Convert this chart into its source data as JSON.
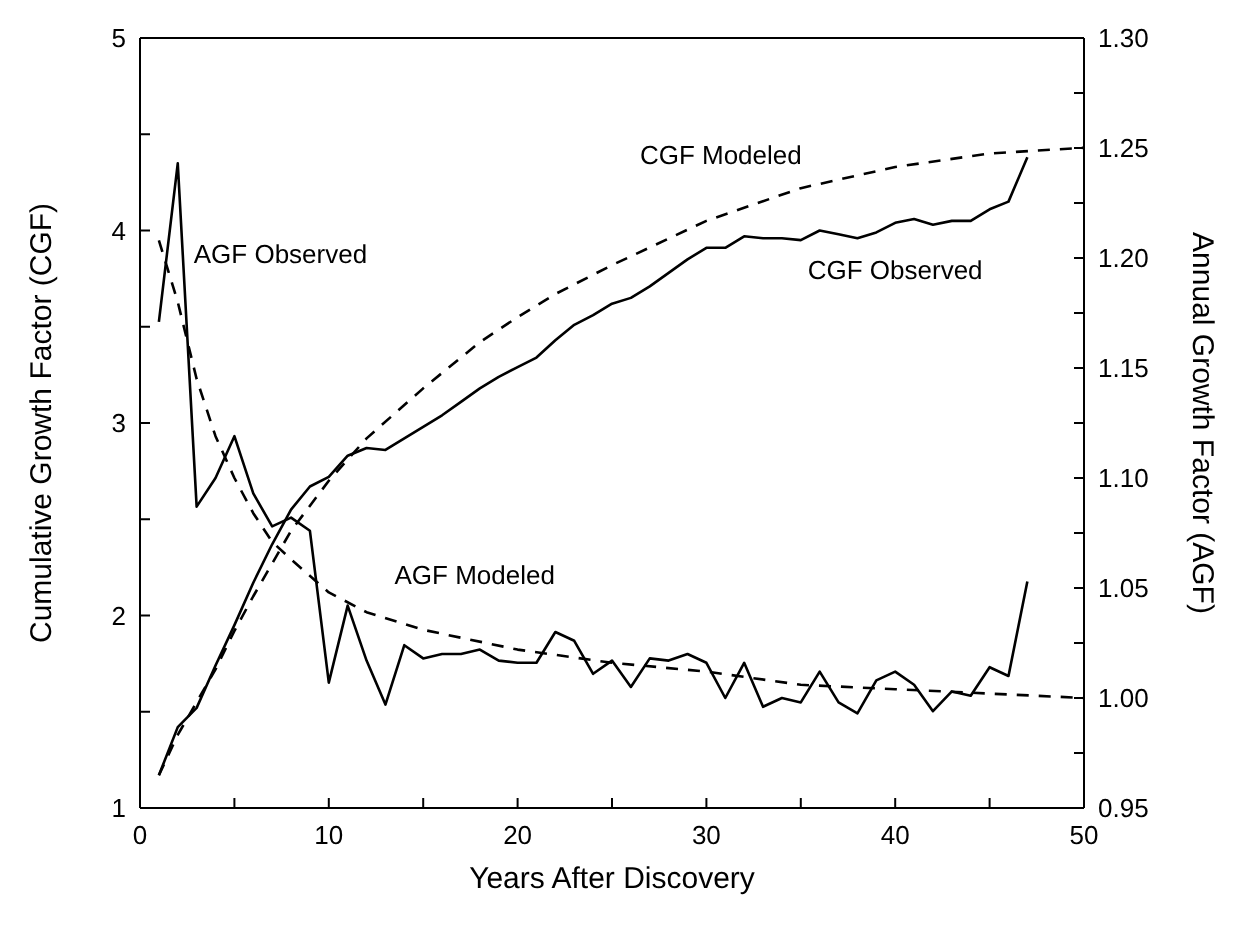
{
  "chart_data": {
    "type": "line",
    "xlabel": "Years After Discovery",
    "ylabel": "Cumulative Growth Factor (CGF)",
    "y2label": "Annual Growth Factor (AGF)",
    "xlim": [
      0,
      50
    ],
    "xticks": [
      0,
      {
        "value": 5,
        "label": null
      },
      10,
      {
        "value": 15,
        "label": null
      },
      20,
      {
        "value": 25,
        "label": null
      },
      30,
      {
        "value": 35,
        "label": null
      },
      40,
      {
        "value": 45,
        "label": null
      },
      50
    ],
    "ylim": [
      1,
      5
    ],
    "yticks": [
      1,
      {
        "value": 1.5,
        "label": null
      },
      2,
      {
        "value": 2.5,
        "label": null
      },
      3,
      {
        "value": 3.5,
        "label": null
      },
      4,
      {
        "value": 4.5,
        "label": null
      },
      5
    ],
    "y2lim": [
      0.95,
      1.3
    ],
    "y2ticks": [
      {
        "value": 0.95,
        "label": "0.95"
      },
      {
        "value": 0.975,
        "label": null
      },
      {
        "value": 1,
        "label": "1.00"
      },
      {
        "value": 1.025,
        "label": null
      },
      {
        "value": 1.05,
        "label": "1.05"
      },
      {
        "value": 1.075,
        "label": null
      },
      {
        "value": 1.1,
        "label": "1.10"
      },
      {
        "value": 1.125,
        "label": null
      },
      {
        "value": 1.15,
        "label": "1.15"
      },
      {
        "value": 1.175,
        "label": null
      },
      {
        "value": 1.2,
        "label": "1.20"
      },
      {
        "value": 1.225,
        "label": null
      },
      {
        "value": 1.25,
        "label": "1.25"
      },
      {
        "value": 1.275,
        "label": null
      },
      {
        "value": 1.3,
        "label": "1.30"
      }
    ],
    "grid": false,
    "legend": false,
    "marker": "none",
    "series": [
      {
        "name": "CGF Observed",
        "color": "#000000",
        "line_style": "solid",
        "x": [
          1,
          2,
          3,
          4,
          5,
          6,
          7,
          8,
          9,
          10,
          11,
          12,
          13,
          14,
          15,
          16,
          17,
          18,
          19,
          20,
          21,
          22,
          23,
          24,
          25,
          26,
          27,
          28,
          29,
          30,
          31,
          32,
          33,
          34,
          35,
          36,
          37,
          38,
          39,
          40,
          41,
          42,
          43,
          44,
          45,
          46,
          47
        ],
        "values": [
          1.17,
          1.42,
          1.52,
          1.74,
          1.95,
          2.17,
          2.37,
          2.55,
          2.67,
          2.72,
          2.83,
          2.87,
          2.86,
          2.92,
          2.98,
          3.04,
          3.11,
          3.18,
          3.24,
          3.29,
          3.34,
          3.43,
          3.51,
          3.56,
          3.62,
          3.65,
          3.71,
          3.78,
          3.85,
          3.91,
          3.91,
          3.97,
          3.96,
          3.96,
          3.95,
          4.0,
          3.98,
          3.96,
          3.99,
          4.04,
          4.06,
          4.03,
          4.05,
          4.05,
          4.11,
          4.15,
          4.38
        ]
      },
      {
        "name": "CGF Modeled",
        "color": "#000000",
        "line_style": "dashed",
        "x": [
          1,
          2,
          3,
          4,
          5,
          6,
          8,
          10,
          12,
          15,
          18,
          20,
          22,
          25,
          30,
          35,
          40,
          45,
          50
        ],
        "values": [
          1.17,
          1.38,
          1.55,
          1.72,
          1.92,
          2.1,
          2.44,
          2.7,
          2.92,
          3.18,
          3.42,
          3.55,
          3.67,
          3.82,
          4.05,
          4.22,
          4.33,
          4.4,
          4.43
        ]
      },
      {
        "name": "AGF Observed",
        "color": "#000000",
        "line_style": "solid",
        "axis": "y2",
        "x": [
          1,
          2,
          3,
          4,
          5,
          6,
          7,
          8,
          9,
          10,
          11,
          12,
          13,
          14,
          15,
          16,
          17,
          18,
          19,
          20,
          21,
          22,
          23,
          24,
          25,
          26,
          27,
          28,
          29,
          30,
          31,
          32,
          33,
          34,
          35,
          36,
          37,
          38,
          39,
          40,
          41,
          42,
          43,
          44,
          45,
          46,
          47
        ],
        "values": [
          1.171,
          1.243,
          1.087,
          1.1,
          1.119,
          1.093,
          1.078,
          1.082,
          1.076,
          1.007,
          1.042,
          1.017,
          0.997,
          1.024,
          1.018,
          1.02,
          1.02,
          1.022,
          1.017,
          1.016,
          1.016,
          1.03,
          1.026,
          1.011,
          1.017,
          1.005,
          1.018,
          1.017,
          1.02,
          1.016,
          1.0,
          1.016,
          0.996,
          1.0,
          0.998,
          1.012,
          0.998,
          0.993,
          1.008,
          1.012,
          1.006,
          0.994,
          1.003,
          1.001,
          1.014,
          1.01,
          1.053
        ]
      },
      {
        "name": "AGF Modeled",
        "color": "#000000",
        "line_style": "dashed",
        "axis": "y2",
        "x": [
          1,
          2,
          3,
          4,
          5,
          6,
          7,
          8,
          10,
          12,
          15,
          20,
          25,
          30,
          35,
          40,
          45,
          50
        ],
        "values": [
          1.208,
          1.18,
          1.145,
          1.119,
          1.1,
          1.084,
          1.071,
          1.063,
          1.048,
          1.039,
          1.031,
          1.022,
          1.016,
          1.012,
          1.006,
          1.004,
          1.002,
          1.0
        ]
      }
    ]
  }
}
